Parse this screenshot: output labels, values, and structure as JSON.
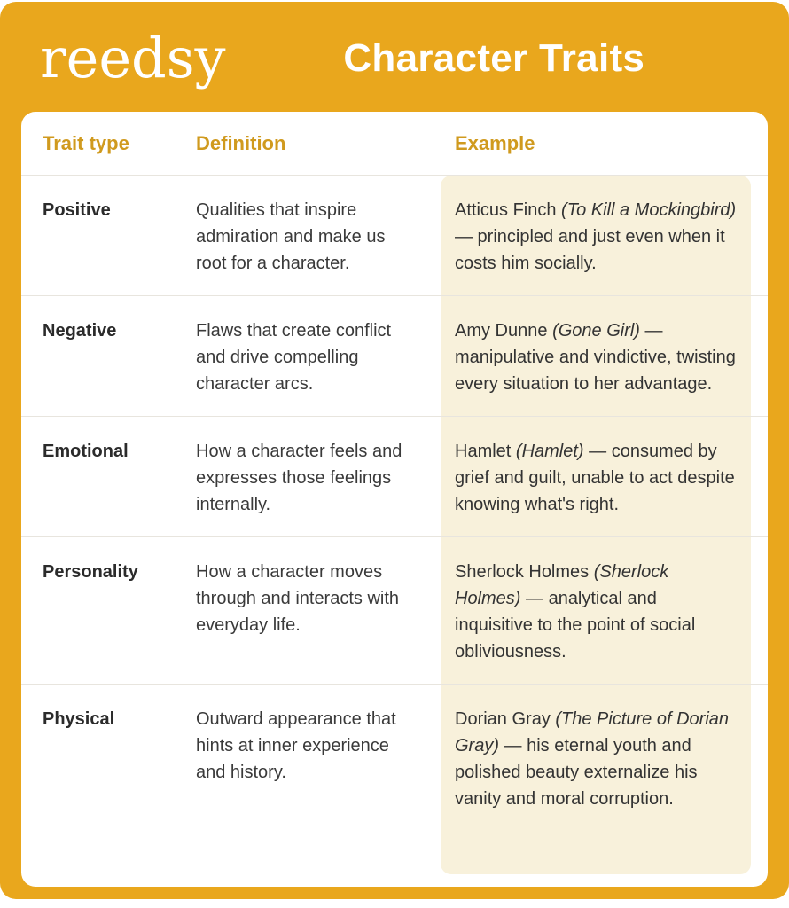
{
  "colors": {
    "gold_background": "#E9A71D",
    "card_background": "#FFFFFF",
    "example_column_background": "#F8F1DB",
    "divider": "#E8E5DE",
    "column_header_text": "#D09A1E",
    "body_text": "#333333",
    "header_text": "#FFFFFF"
  },
  "header": {
    "logo": "reedsy",
    "title": "Character Traits"
  },
  "table": {
    "columns": [
      "Trait type",
      "Definition",
      "Example"
    ],
    "rows": [
      {
        "trait": "Positive",
        "definition": "Qualities that inspire admiration and make us root for a character.",
        "example": {
          "lead": "Atticus Finch ",
          "work_italic": "(To Kill a Mockingbird)",
          "rest": " — principled and just even when it costs him socially."
        }
      },
      {
        "trait": "Negative",
        "definition": "Flaws that create conflict and drive compelling character arcs.",
        "example": {
          "lead": "Amy Dunne ",
          "work_italic": "(Gone Girl)",
          "rest": " — manipulative and vindictive, twisting every situation to her advantage."
        }
      },
      {
        "trait": "Emotional",
        "definition": "How a character feels and expresses those feelings internally.",
        "example": {
          "lead": "Hamlet ",
          "work_italic": "(Hamlet)",
          "rest": " — consumed by grief and guilt, unable to act despite knowing what's right."
        }
      },
      {
        "trait": "Personality",
        "definition": "How a character moves through and interacts with everyday life.",
        "example": {
          "lead": "Sherlock Holmes ",
          "work_italic": "(Sherlock Holmes)",
          "rest": " — analytical and inquisitive to the point of social obliviousness."
        }
      },
      {
        "trait": "Physical",
        "definition": "Outward appearance that hints at inner experience and history.",
        "example": {
          "lead": "Dorian Gray ",
          "work_italic": "(The Picture of Dorian Gray)",
          "rest": " — his eternal youth and polished beauty externalize his vanity and moral corruption."
        }
      }
    ]
  }
}
